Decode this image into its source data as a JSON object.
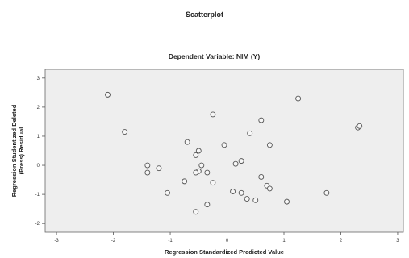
{
  "chart_data": {
    "type": "scatter",
    "title": "Scatterplot",
    "subtitle": "Dependent Variable: NIM (Y)",
    "xlabel": "Regression Standardized Predicted Value",
    "ylabel": [
      "Regression Studentized Deleted",
      "(Press) Residual"
    ],
    "xlim": [
      -3.2,
      3.1
    ],
    "ylim": [
      -2.3,
      3.3
    ],
    "xticks": [
      -3,
      -2,
      -1,
      0,
      1,
      2,
      3
    ],
    "yticks": [
      -2,
      -1,
      0,
      1,
      2,
      3
    ],
    "grid": false,
    "colors": {
      "plot_bg": "#eeeeee",
      "point_fill": "#f6f6f6",
      "point_stroke": "#555555"
    },
    "points": [
      {
        "x": -2.1,
        "y": 2.43
      },
      {
        "x": -1.8,
        "y": 1.15
      },
      {
        "x": -1.4,
        "y": 0.0
      },
      {
        "x": -1.4,
        "y": -0.25
      },
      {
        "x": -1.2,
        "y": -0.1
      },
      {
        "x": -1.05,
        "y": -0.95
      },
      {
        "x": -0.75,
        "y": -0.55
      },
      {
        "x": -0.7,
        "y": 0.8
      },
      {
        "x": -0.55,
        "y": 0.35
      },
      {
        "x": -0.5,
        "y": 0.5
      },
      {
        "x": -0.5,
        "y": -0.2
      },
      {
        "x": -0.55,
        "y": -0.25
      },
      {
        "x": -0.45,
        "y": 0.0
      },
      {
        "x": -0.35,
        "y": -0.25
      },
      {
        "x": -0.35,
        "y": -1.35
      },
      {
        "x": -0.55,
        "y": -1.6
      },
      {
        "x": -0.25,
        "y": -0.6
      },
      {
        "x": -0.25,
        "y": 1.75
      },
      {
        "x": -0.05,
        "y": 0.7
      },
      {
        "x": 0.15,
        "y": 0.05
      },
      {
        "x": 0.25,
        "y": 0.15
      },
      {
        "x": 0.1,
        "y": -0.9
      },
      {
        "x": 0.25,
        "y": -0.95
      },
      {
        "x": 0.35,
        "y": -1.15
      },
      {
        "x": 0.5,
        "y": -1.2
      },
      {
        "x": 0.4,
        "y": 1.1
      },
      {
        "x": 0.6,
        "y": 1.55
      },
      {
        "x": 0.75,
        "y": 0.7
      },
      {
        "x": 0.6,
        "y": -0.4
      },
      {
        "x": 0.7,
        "y": -0.7
      },
      {
        "x": 0.75,
        "y": -0.8
      },
      {
        "x": 1.05,
        "y": -1.25
      },
      {
        "x": 1.25,
        "y": 2.3
      },
      {
        "x": 1.75,
        "y": -0.95
      },
      {
        "x": 2.3,
        "y": 1.3
      },
      {
        "x": 2.33,
        "y": 1.35
      }
    ]
  }
}
